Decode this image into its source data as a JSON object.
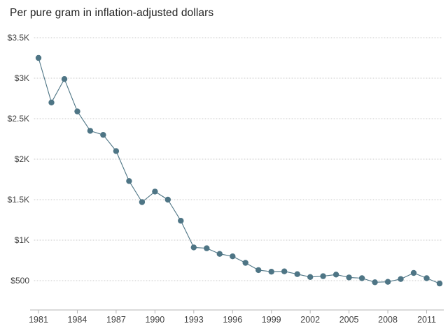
{
  "chart_data": {
    "type": "line",
    "title": "Per pure gram in inflation-adjusted dollars",
    "xlabel": "",
    "ylabel": "",
    "x": [
      1981,
      1982,
      1983,
      1984,
      1985,
      1986,
      1987,
      1988,
      1989,
      1990,
      1991,
      1992,
      1993,
      1994,
      1995,
      1996,
      1997,
      1998,
      1999,
      2000,
      2001,
      2002,
      2003,
      2004,
      2005,
      2006,
      2007,
      2008,
      2009,
      2010,
      2011,
      2012
    ],
    "values": [
      3250,
      2700,
      2990,
      2590,
      2350,
      2300,
      2100,
      1730,
      1470,
      1600,
      1500,
      1240,
      910,
      900,
      830,
      800,
      720,
      630,
      610,
      615,
      580,
      545,
      555,
      575,
      540,
      530,
      480,
      485,
      520,
      595,
      530,
      465
    ],
    "y_ticks": [
      {
        "value": 500,
        "label": "$500"
      },
      {
        "value": 1000,
        "label": "$1K"
      },
      {
        "value": 1500,
        "label": "$1.5K"
      },
      {
        "value": 2000,
        "label": "$2K"
      },
      {
        "value": 2500,
        "label": "$2.5K"
      },
      {
        "value": 3000,
        "label": "$3K"
      },
      {
        "value": 3500,
        "label": "$3.5K"
      }
    ],
    "x_ticks": [
      {
        "value": 1981,
        "label": "1981"
      },
      {
        "value": 1984,
        "label": "1984"
      },
      {
        "value": 1987,
        "label": "1987"
      },
      {
        "value": 1990,
        "label": "1990"
      },
      {
        "value": 1993,
        "label": "1993"
      },
      {
        "value": 1996,
        "label": "1996"
      },
      {
        "value": 1999,
        "label": "1999"
      },
      {
        "value": 2002,
        "label": "2002"
      },
      {
        "value": 2005,
        "label": "2005"
      },
      {
        "value": 2008,
        "label": "2008"
      },
      {
        "value": 2011,
        "label": "2011"
      }
    ],
    "xlim": [
      1981,
      2012
    ],
    "ylim": [
      150,
      3700
    ],
    "grid": "horizontal-dotted",
    "legend_position": "none",
    "colors": {
      "series": "#4e7585",
      "grid": "#c9c9c9",
      "axis": "#b5b5b5",
      "text": "#404040",
      "title_text": "#1f1f1f",
      "background": "#ffffff"
    }
  }
}
